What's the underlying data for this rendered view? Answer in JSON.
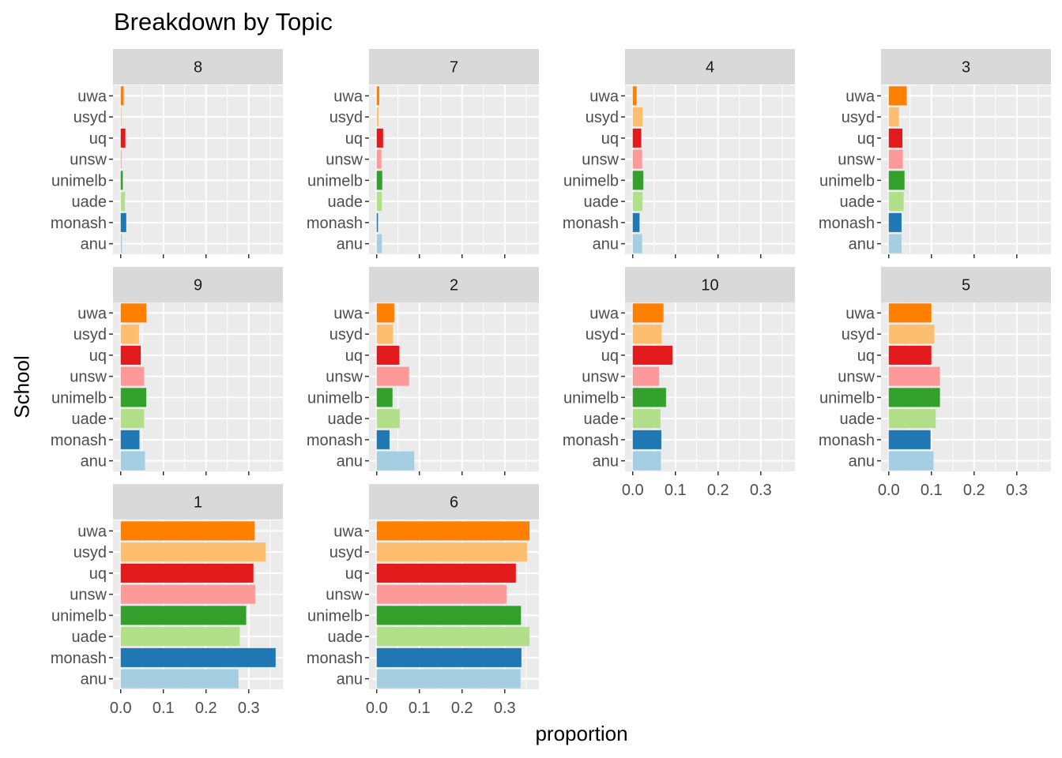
{
  "chart_data": {
    "type": "bar",
    "orientation": "horizontal",
    "title": "Breakdown by Topic",
    "xlabel": "proportion",
    "ylabel": "School",
    "categories": [
      "anu",
      "monash",
      "uade",
      "unimelb",
      "unsw",
      "uq",
      "usyd",
      "uwa"
    ],
    "xlim": [
      -0.018,
      0.38
    ],
    "xticks": [
      0.0,
      0.1,
      0.2,
      0.3
    ],
    "xtick_labels": [
      "0.0",
      "0.1",
      "0.2",
      "0.3"
    ],
    "grid": true,
    "legend": "none",
    "colors": {
      "anu": "#a6cee3",
      "monash": "#1f78b4",
      "uade": "#b2df8a",
      "unimelb": "#33a02c",
      "unsw": "#fb9a99",
      "uq": "#e31a1c",
      "usyd": "#fdbf6f",
      "uwa": "#ff7f00"
    },
    "facets": [
      {
        "label": "8",
        "values": {
          "anu": 0.003,
          "monash": 0.013,
          "uade": 0.01,
          "unimelb": 0.005,
          "unsw": 0.002,
          "uq": 0.011,
          "usyd": 0.002,
          "uwa": 0.007
        }
      },
      {
        "label": "7",
        "values": {
          "anu": 0.012,
          "monash": 0.003,
          "uade": 0.012,
          "unimelb": 0.013,
          "unsw": 0.011,
          "uq": 0.015,
          "usyd": 0.004,
          "uwa": 0.006
        }
      },
      {
        "label": "4",
        "values": {
          "anu": 0.022,
          "monash": 0.016,
          "uade": 0.023,
          "unimelb": 0.025,
          "unsw": 0.022,
          "uq": 0.02,
          "usyd": 0.023,
          "uwa": 0.009
        }
      },
      {
        "label": "3",
        "values": {
          "anu": 0.03,
          "monash": 0.03,
          "uade": 0.035,
          "unimelb": 0.037,
          "unsw": 0.033,
          "uq": 0.032,
          "usyd": 0.024,
          "uwa": 0.042
        }
      },
      {
        "label": "9",
        "values": {
          "anu": 0.057,
          "monash": 0.044,
          "uade": 0.055,
          "unimelb": 0.06,
          "unsw": 0.055,
          "uq": 0.047,
          "usyd": 0.043,
          "uwa": 0.06
        }
      },
      {
        "label": "2",
        "values": {
          "anu": 0.088,
          "monash": 0.03,
          "uade": 0.054,
          "unimelb": 0.037,
          "unsw": 0.076,
          "uq": 0.053,
          "usyd": 0.038,
          "uwa": 0.041
        }
      },
      {
        "label": "10",
        "values": {
          "anu": 0.066,
          "monash": 0.067,
          "uade": 0.065,
          "unimelb": 0.078,
          "unsw": 0.062,
          "uq": 0.093,
          "usyd": 0.068,
          "uwa": 0.072
        }
      },
      {
        "label": "5",
        "values": {
          "anu": 0.105,
          "monash": 0.098,
          "uade": 0.11,
          "unimelb": 0.12,
          "unsw": 0.12,
          "uq": 0.1,
          "usyd": 0.107,
          "uwa": 0.1
        }
      },
      {
        "label": "1",
        "values": {
          "anu": 0.276,
          "monash": 0.363,
          "uade": 0.279,
          "unimelb": 0.294,
          "unsw": 0.315,
          "uq": 0.311,
          "usyd": 0.34,
          "uwa": 0.314
        }
      },
      {
        "label": "6",
        "values": {
          "anu": 0.337,
          "monash": 0.339,
          "uade": 0.358,
          "unimelb": 0.338,
          "unsw": 0.304,
          "uq": 0.326,
          "usyd": 0.352,
          "uwa": 0.358
        }
      }
    ]
  }
}
